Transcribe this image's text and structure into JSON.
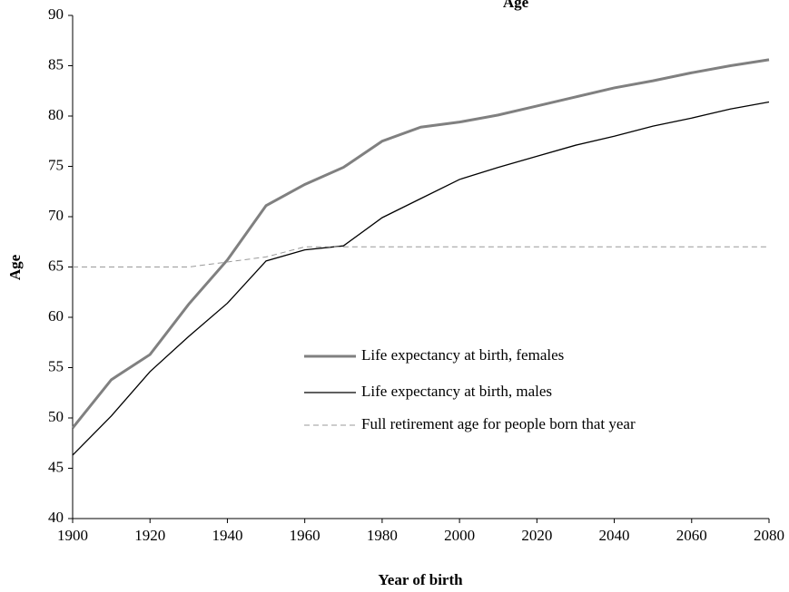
{
  "chart_data": {
    "type": "line",
    "title": "Age",
    "xlabel": "Year of birth",
    "ylabel": "Age",
    "x": [
      1900,
      1910,
      1920,
      1930,
      1940,
      1950,
      1960,
      1970,
      1980,
      1990,
      2000,
      2010,
      2020,
      2030,
      2040,
      2050,
      2060,
      2070,
      2080
    ],
    "series": [
      {
        "name": "Life expectancy at birth, females",
        "color": "#808080",
        "style": "solid",
        "values": [
          49.0,
          53.8,
          56.3,
          61.3,
          65.7,
          71.1,
          73.2,
          74.9,
          77.5,
          78.9,
          79.4,
          80.1,
          81.0,
          81.9,
          82.8,
          83.5,
          84.3,
          85.0,
          85.6
        ]
      },
      {
        "name": "Life expectancy at birth, males",
        "color": "#000000",
        "style": "solid",
        "values": [
          46.3,
          50.2,
          54.6,
          58.1,
          61.4,
          65.6,
          66.7,
          67.1,
          69.9,
          71.8,
          73.7,
          74.9,
          76.0,
          77.1,
          78.0,
          79.0,
          79.8,
          80.7,
          81.4
        ]
      },
      {
        "name": "Full retirement age for people born that year",
        "color": "#999999",
        "style": "dashed",
        "values": [
          65,
          65,
          65,
          65,
          65.5,
          66,
          67,
          67,
          67,
          67,
          67,
          67,
          67,
          67,
          67,
          67,
          67,
          67,
          67
        ]
      }
    ],
    "xlim": [
      1900,
      2080
    ],
    "xticks": [
      1900,
      1920,
      1940,
      1960,
      1980,
      2000,
      2020,
      2040,
      2060,
      2080
    ],
    "ylim": [
      40,
      90
    ],
    "yticks": [
      40,
      45,
      50,
      55,
      60,
      65,
      70,
      75,
      80,
      85,
      90
    ],
    "grid": false,
    "legend": "center-right"
  }
}
